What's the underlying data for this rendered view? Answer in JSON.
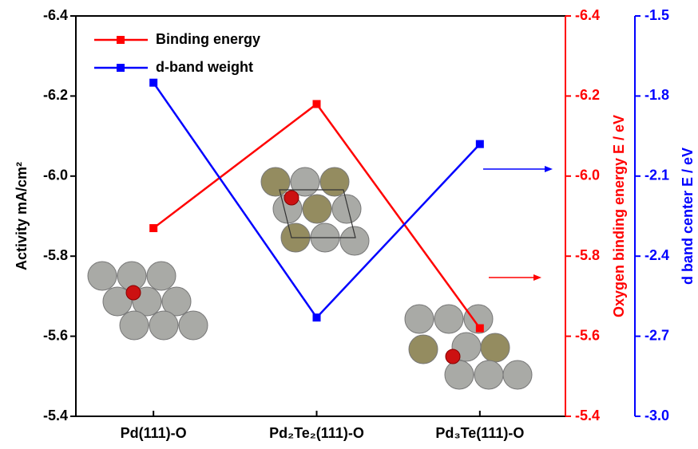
{
  "chart_data": {
    "type": "line",
    "categories": [
      "Pd(111)-O",
      "Pd₂Te₂(111)-O",
      "Pd₃Te(111)-O"
    ],
    "ylabel": "Activity mA/cm²",
    "y2label": "Oxygen binding energy E / eV",
    "y3label": "d band center E / eV",
    "ylim": [
      -5.4,
      -6.4
    ],
    "yticks": [
      -6.4,
      -6.2,
      {
        "value": -6,
        "label": "-6.0"
      },
      -5.8,
      -5.6,
      -5.4
    ],
    "y2lim": [
      -5.4,
      -6.4
    ],
    "y2ticks": [
      -6.4,
      -6.2,
      {
        "value": -6,
        "label": "-6.0"
      },
      -5.8,
      -5.6,
      -5.4
    ],
    "y3lim": [
      -3,
      -1.5
    ],
    "y3ticks": [
      -1.5,
      -1.8,
      -2.1,
      -2.4,
      -2.7,
      {
        "value": -3,
        "label": "-3.0"
      }
    ],
    "y2color": "#ff0000",
    "y3color": "#0000ff",
    "legend": "upper left",
    "series": [
      {
        "name": "Binding energy",
        "color": "#ff0000",
        "axis": "y2",
        "values": [
          -5.87,
          -6.18,
          -5.62
        ]
      },
      {
        "name": "d-band weight",
        "color": "#0000ff",
        "axis": "y3",
        "values": [
          -1.75,
          -2.63,
          -1.98
        ]
      }
    ]
  }
}
